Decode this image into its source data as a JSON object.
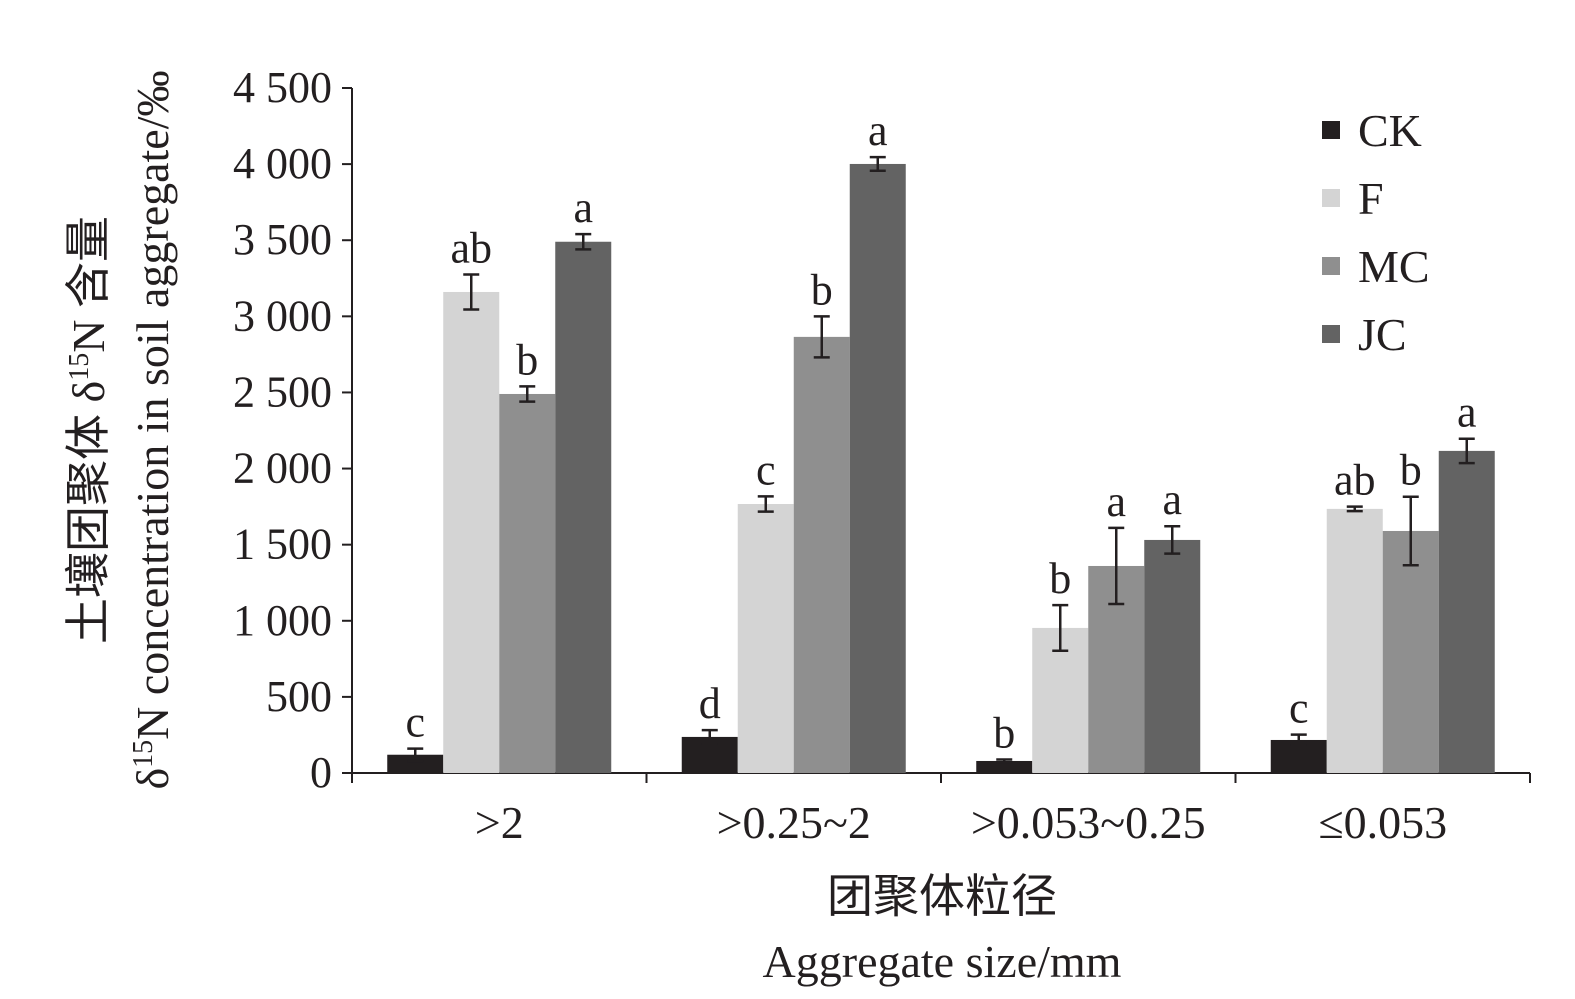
{
  "chart_data": {
    "type": "bar",
    "title": "",
    "xlabel_cn": "团聚体粒径",
    "xlabel": "Aggregate size/mm",
    "ylabel_cn": {
      "pre": "土壤团聚体 δ",
      "sup": "15",
      "post": "N 含量"
    },
    "ylabel": {
      "pre": "δ",
      "sup": "15",
      "post": "N concentration in soil aggregate/‰"
    },
    "ylim": [
      0,
      4500
    ],
    "yticks": [
      0,
      500,
      1000,
      1500,
      2000,
      2500,
      3000,
      3500,
      4000,
      4500
    ],
    "ytick_labels": [
      "0",
      "500",
      "1 000",
      "1 500",
      "2 000",
      "2 500",
      "3 000",
      "3 500",
      "4 000",
      "4 500"
    ],
    "categories": [
      ">2",
      ">0.25~2",
      ">0.053~0.25",
      "≤0.053"
    ],
    "legend_position": "top-right",
    "series": [
      {
        "name": "CK",
        "color": "#231f20",
        "values": [
          120,
          237,
          79,
          217
        ],
        "errors": [
          40,
          45,
          10,
          35
        ],
        "letters": [
          "c",
          "d",
          "b",
          "c"
        ]
      },
      {
        "name": "F",
        "color": "#d4d4d4",
        "values": [
          3160,
          1767,
          953,
          1735
        ],
        "errors": [
          115,
          50,
          150,
          15
        ],
        "letters": [
          "ab",
          "c",
          "b",
          "ab"
        ]
      },
      {
        "name": "MC",
        "color": "#8f8f8f",
        "values": [
          2490,
          2865,
          1360,
          1590
        ],
        "errors": [
          50,
          135,
          250,
          225
        ],
        "letters": [
          "b",
          "b",
          "a",
          "b"
        ]
      },
      {
        "name": "JC",
        "color": "#636363",
        "values": [
          3490,
          4001,
          1531,
          2116
        ],
        "errors": [
          50,
          45,
          90,
          80
        ],
        "letters": [
          "a",
          "a",
          "a",
          "a"
        ]
      }
    ]
  }
}
